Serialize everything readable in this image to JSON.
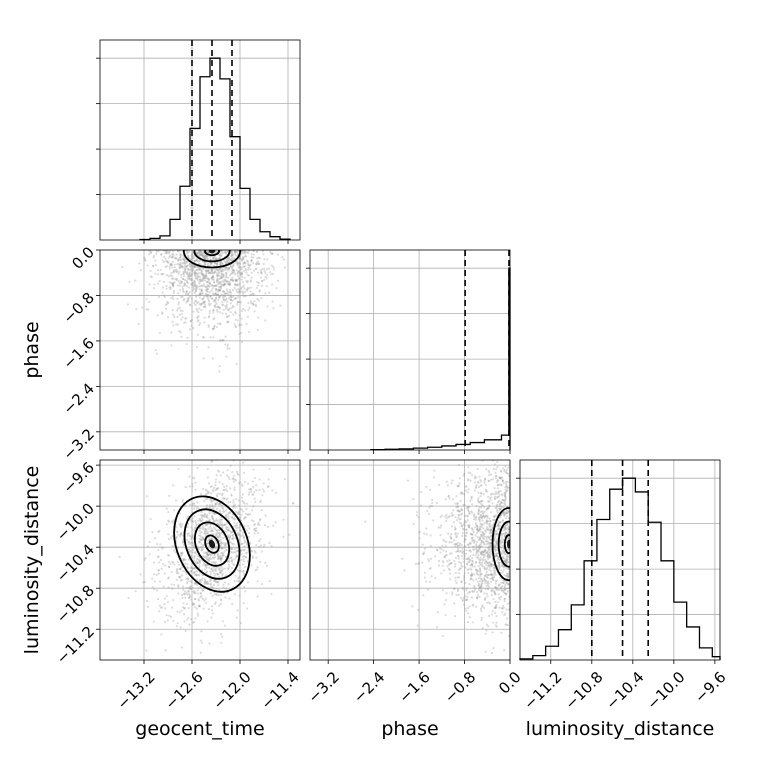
{
  "figure": {
    "parameters": [
      "geocent_time",
      "phase",
      "luminosity_distance"
    ],
    "colors": {
      "line": "#000000",
      "grid": "#b0b0b0",
      "points": "#9a9a9a"
    }
  },
  "chart_data": {
    "type": "corner",
    "grid": true,
    "axes": [
      {
        "name": "geocent_time",
        "xlabel": "geocent_time",
        "range": [
          -13.75,
          -11.25
        ],
        "ticks": [
          -13.2,
          -12.6,
          -12.0,
          -11.4
        ],
        "tick_labels": [
          "−13.2",
          "−12.6",
          "−12.0",
          "−11.4"
        ],
        "quantiles": [
          -12.6,
          -12.35,
          -12.1
        ]
      },
      {
        "name": "phase",
        "ylabel": "phase",
        "xlabel": "phase",
        "range": [
          -3.52,
          0.0
        ],
        "ticks": [
          -3.2,
          -2.4,
          -1.6,
          -0.8,
          0.0
        ],
        "tick_labels": [
          "−3.2",
          "−2.4",
          "−1.6",
          "−0.8",
          "0.0"
        ],
        "quantiles": [
          -0.79,
          0.0
        ]
      },
      {
        "name": "luminosity_distance",
        "ylabel": "luminosity_distance",
        "xlabel": "luminosity_distance",
        "range": [
          -11.5,
          -9.55
        ],
        "ticks": [
          -11.2,
          -10.8,
          -10.4,
          -10.0,
          -9.6
        ],
        "tick_labels": [
          "−11.2",
          "−10.8",
          "−10.4",
          "−10.0",
          "−9.6"
        ],
        "quantiles": [
          -10.8,
          -10.5,
          -10.25
        ]
      }
    ],
    "histograms": [
      {
        "param": "geocent_time",
        "bin_edges": [
          -13.25,
          -13.125,
          -13.0,
          -12.875,
          -12.75,
          -12.625,
          -12.5,
          -12.375,
          -12.25,
          -12.125,
          -12.0,
          -11.875,
          -11.75,
          -11.625,
          -11.5,
          -11.375
        ],
        "counts": [
          1,
          4,
          10,
          50,
          130,
          270,
          395,
          440,
          390,
          250,
          125,
          50,
          20,
          8,
          2
        ]
      },
      {
        "param": "phase",
        "bin_edges": [
          -2.45,
          -2.2,
          -1.95,
          -1.7,
          -1.45,
          -1.2,
          -0.95,
          -0.7,
          -0.45,
          -0.15,
          -0.02,
          0.0
        ],
        "counts": [
          2,
          4,
          6,
          10,
          15,
          22,
          30,
          40,
          55,
          80,
          980
        ]
      },
      {
        "param": "luminosity_distance",
        "bin_edges": [
          -11.5,
          -11.375,
          -11.25,
          -11.125,
          -11.0,
          -10.875,
          -10.75,
          -10.625,
          -10.5,
          -10.375,
          -10.25,
          -10.125,
          -10.0,
          -9.875,
          -9.75,
          -9.625,
          -9.55
        ],
        "counts": [
          2,
          8,
          25,
          55,
          100,
          180,
          255,
          310,
          330,
          305,
          250,
          180,
          105,
          60,
          22,
          6
        ]
      }
    ],
    "contour_panels": [
      {
        "x": "geocent_time",
        "y": "phase",
        "center": [
          -12.35,
          -0.02
        ],
        "sigma": [
          0.22,
          0.18
        ],
        "corr": 0.0,
        "levels": [
          0.4,
          1.0,
          1.6
        ],
        "half": "below"
      },
      {
        "x": "geocent_time",
        "y": "luminosity_distance",
        "center": [
          -12.35,
          -10.37
        ],
        "sigma": [
          0.2,
          0.22
        ],
        "corr": 0.35,
        "levels": [
          0.4,
          1.0,
          1.6,
          2.2
        ]
      },
      {
        "x": "phase",
        "y": "luminosity_distance",
        "center": [
          -0.02,
          -10.37
        ],
        "sigma": [
          0.18,
          0.22
        ],
        "corr": 0.0,
        "levels": [
          0.4,
          1.0,
          1.6
        ],
        "half": "left"
      }
    ]
  }
}
